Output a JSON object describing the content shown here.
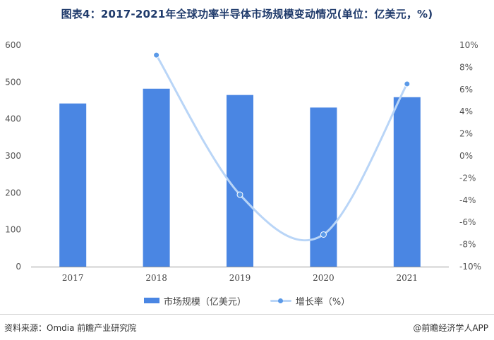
{
  "title": "图表4：2017-2021年全球功率半导体市场规模变动情况(单位：亿美元，%)",
  "legend": {
    "bar_label": "市场规模（亿美元）",
    "line_label": "增长率（%）"
  },
  "source": "资料来源：Omdia 前瞻产业研究院",
  "credit": "@前瞻经济学人APP",
  "colors": {
    "bar": "#4a86e3",
    "line": "#b9d5f7",
    "marker": "#5b9ae8"
  },
  "chart_data": {
    "type": "bar",
    "categories": [
      "2017",
      "2018",
      "2019",
      "2020",
      "2021"
    ],
    "series": [
      {
        "name": "市场规模（亿美元）",
        "type": "bar",
        "axis": "left",
        "values": [
          442,
          482,
          465,
          431,
          459
        ]
      },
      {
        "name": "增长率（%）",
        "type": "line",
        "axis": "right",
        "values": [
          null,
          9.1,
          -3.5,
          -7.1,
          6.5
        ]
      }
    ],
    "y_left": {
      "min": 0,
      "max": 600,
      "ticks": [
        "0",
        "100",
        "200",
        "300",
        "400",
        "500",
        "600"
      ]
    },
    "y_right": {
      "min": -10,
      "max": 10,
      "ticks": [
        "-10%",
        "-8%",
        "-6%",
        "-4%",
        "-2%",
        "0%",
        "2%",
        "4%",
        "6%",
        "8%",
        "10%"
      ]
    },
    "grid": false,
    "legend_position": "bottom"
  }
}
